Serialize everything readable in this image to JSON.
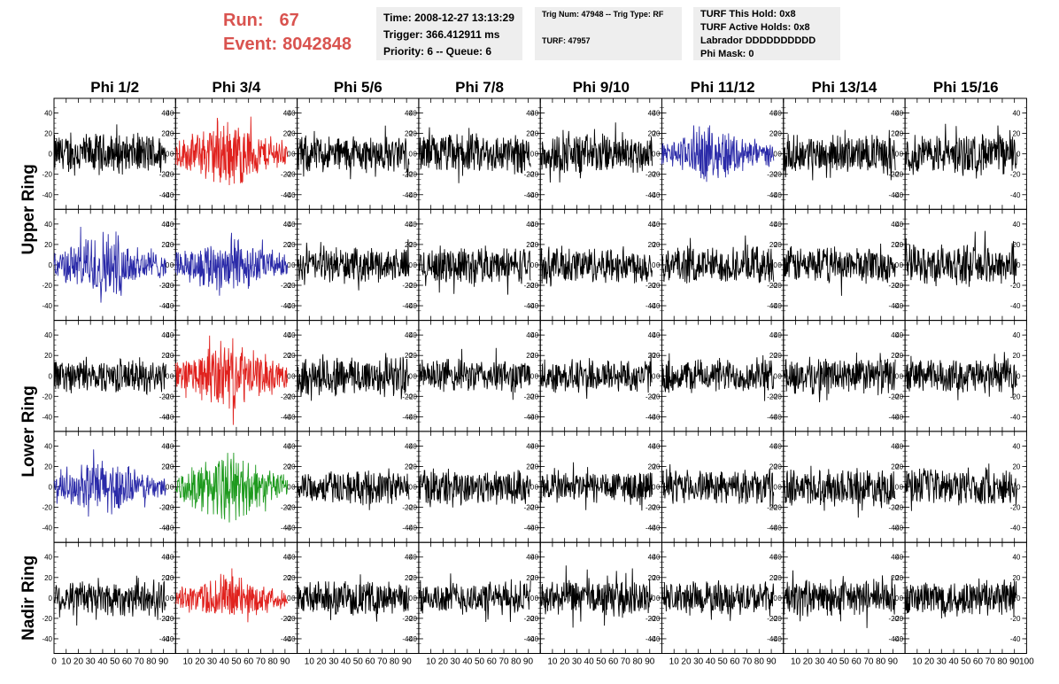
{
  "header": {
    "run_label": "Run:",
    "run_value": "67",
    "event_label": "Event:",
    "event_value": "8042848",
    "time": "Time: 2008-12-27 13:13:29",
    "trigger": "Trigger: 366.412911 ms",
    "priority": "Priority: 6 -- Queue: 6",
    "trig_num": "Trig Num: 47948 -- Trig Type: RF",
    "turf": "TURF: 47957",
    "turf_this_hold": "TURF This Hold: 0x8",
    "turf_active_holds": "TURF Active Holds: 0x8",
    "labrador": "Labrador DDDDDDDDDD",
    "phi_mask": "Phi Mask: 0"
  },
  "colors": {
    "accent_text": "#d9534f",
    "info_bg": "#eeeeee",
    "trace_black": "#000000",
    "trace_red": "#e0221e",
    "trace_blue": "#2a2aa8",
    "trace_green": "#1e9a1e"
  },
  "chart_data": {
    "type": "line",
    "columns": [
      "Phi 1/2",
      "Phi 3/4",
      "Phi 5/6",
      "Phi 7/8",
      "Phi 9/10",
      "Phi 11/12",
      "Phi 13/14",
      "Phi 15/16"
    ],
    "rows": 5,
    "row_labels": [
      {
        "text": "Upper Ring",
        "rows": [
          0,
          1
        ]
      },
      {
        "text": "Lower Ring",
        "rows": [
          2,
          3
        ]
      },
      {
        "text": "Nadir Ring",
        "rows": [
          4,
          4
        ]
      }
    ],
    "xlim": [
      0,
      100
    ],
    "ylim": [
      -50,
      50
    ],
    "y_ticks": [
      -40,
      -20,
      0,
      20,
      40
    ],
    "x_ticks": [
      0,
      10,
      20,
      30,
      40,
      50,
      60,
      70,
      80,
      90,
      100
    ],
    "trace_x_range": [
      0,
      92
    ],
    "trace_colors": [
      [
        "black",
        "red",
        "black",
        "black",
        "black",
        "blue",
        "black",
        "black"
      ],
      [
        "blue",
        "blue",
        "black",
        "black",
        "black",
        "black",
        "black",
        "black"
      ],
      [
        "black",
        "red",
        "black",
        "black",
        "black",
        "black",
        "black",
        "black"
      ],
      [
        "blue",
        "green",
        "black",
        "black",
        "black",
        "black",
        "black",
        "black"
      ],
      [
        "black",
        "red",
        "black",
        "black",
        "black",
        "black",
        "black",
        "black"
      ]
    ],
    "trace_amplitudes": [
      [
        22,
        30,
        20,
        22,
        22,
        24,
        20,
        22
      ],
      [
        30,
        26,
        18,
        20,
        20,
        20,
        20,
        22
      ],
      [
        18,
        30,
        22,
        18,
        18,
        18,
        20,
        18
      ],
      [
        24,
        30,
        18,
        20,
        18,
        18,
        20,
        20
      ],
      [
        20,
        20,
        18,
        18,
        20,
        18,
        20,
        20
      ]
    ]
  }
}
